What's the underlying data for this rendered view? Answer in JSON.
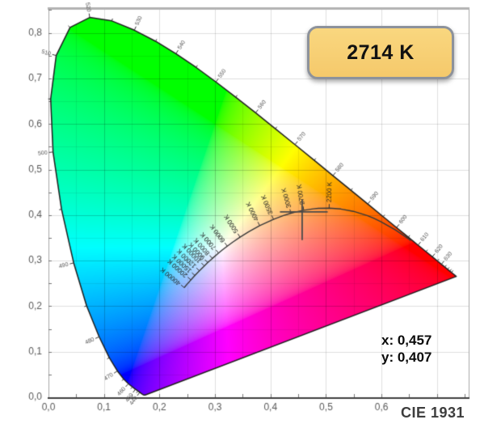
{
  "badge": {
    "label": "2714 K"
  },
  "readout": {
    "x": "x: 0,457",
    "y": "y: 0,407"
  },
  "footer": {
    "label": "CIE 1931"
  },
  "chart_data": {
    "type": "area",
    "subtype": "cie-1931-xy-chromaticity-diagram",
    "title": "CIE 1931",
    "xlabel": "x",
    "ylabel": "y",
    "xlim": [
      0,
      0.757
    ],
    "ylim": [
      0,
      0.8526
    ],
    "grid": {
      "major_step": 0.1,
      "minor_step": 0.05
    },
    "legend": "none",
    "x_ticks": {
      "values": [
        0,
        0.1,
        0.2,
        0.3,
        0.4,
        0.5,
        0.6
      ],
      "labels": [
        "0,0",
        "0,1",
        "0,2",
        "0,3",
        "0,4",
        "0,5",
        "0,6"
      ]
    },
    "y_ticks": {
      "values": [
        0,
        0.1,
        0.2,
        0.3,
        0.4,
        0.5,
        0.6,
        0.7,
        0.8
      ],
      "labels": [
        "0,0",
        "0,1",
        "0,2",
        "0,3",
        "0,4",
        "0,5",
        "0,6",
        "0,7",
        "0,8"
      ]
    },
    "spectral_locus": [
      [
        380,
        0.1741,
        0.005
      ],
      [
        385,
        0.174,
        0.005
      ],
      [
        390,
        0.1738,
        0.0049
      ],
      [
        395,
        0.1736,
        0.0049
      ],
      [
        400,
        0.1733,
        0.0048
      ],
      [
        405,
        0.173,
        0.0048
      ],
      [
        410,
        0.1726,
        0.0048
      ],
      [
        415,
        0.1721,
        0.0048
      ],
      [
        420,
        0.1714,
        0.0051
      ],
      [
        425,
        0.1703,
        0.0058
      ],
      [
        430,
        0.1689,
        0.0069
      ],
      [
        435,
        0.1669,
        0.0086
      ],
      [
        440,
        0.1644,
        0.0109
      ],
      [
        445,
        0.1611,
        0.0138
      ],
      [
        450,
        0.1566,
        0.0177
      ],
      [
        455,
        0.151,
        0.0227
      ],
      [
        460,
        0.144,
        0.0297
      ],
      [
        465,
        0.1355,
        0.0399
      ],
      [
        470,
        0.1241,
        0.0578
      ],
      [
        475,
        0.1096,
        0.0868
      ],
      [
        480,
        0.0913,
        0.1327
      ],
      [
        485,
        0.0687,
        0.2007
      ],
      [
        490,
        0.0454,
        0.295
      ],
      [
        495,
        0.0235,
        0.4127
      ],
      [
        500,
        0.0082,
        0.5384
      ],
      [
        505,
        0.0039,
        0.6548
      ],
      [
        510,
        0.0139,
        0.7502
      ],
      [
        515,
        0.0389,
        0.812
      ],
      [
        520,
        0.0743,
        0.8338
      ],
      [
        525,
        0.1142,
        0.8262
      ],
      [
        530,
        0.1547,
        0.8059
      ],
      [
        535,
        0.1929,
        0.7816
      ],
      [
        540,
        0.2296,
        0.7543
      ],
      [
        545,
        0.2658,
        0.7243
      ],
      [
        550,
        0.3016,
        0.6923
      ],
      [
        555,
        0.3373,
        0.6589
      ],
      [
        560,
        0.3731,
        0.6245
      ],
      [
        565,
        0.4087,
        0.5896
      ],
      [
        570,
        0.4441,
        0.5547
      ],
      [
        575,
        0.4788,
        0.5202
      ],
      [
        580,
        0.5125,
        0.4866
      ],
      [
        585,
        0.5448,
        0.4544
      ],
      [
        590,
        0.5752,
        0.4242
      ],
      [
        595,
        0.6029,
        0.3965
      ],
      [
        600,
        0.627,
        0.3725
      ],
      [
        605,
        0.6482,
        0.3514
      ],
      [
        610,
        0.6658,
        0.334
      ],
      [
        615,
        0.6801,
        0.3197
      ],
      [
        620,
        0.6915,
        0.3083
      ],
      [
        625,
        0.7006,
        0.2993
      ],
      [
        630,
        0.7079,
        0.292
      ],
      [
        635,
        0.714,
        0.2859
      ],
      [
        640,
        0.719,
        0.2809
      ],
      [
        645,
        0.723,
        0.277
      ],
      [
        650,
        0.726,
        0.274
      ],
      [
        655,
        0.7283,
        0.2717
      ],
      [
        660,
        0.73,
        0.27
      ],
      [
        665,
        0.7311,
        0.2689
      ],
      [
        670,
        0.732,
        0.268
      ],
      [
        675,
        0.7327,
        0.2673
      ],
      [
        680,
        0.7334,
        0.2666
      ],
      [
        685,
        0.734,
        0.266
      ],
      [
        690,
        0.7344,
        0.2656
      ],
      [
        695,
        0.7346,
        0.2654
      ],
      [
        700,
        0.7347,
        0.2653
      ]
    ],
    "wavelength_ticks": {
      "from": 440,
      "to": 650,
      "step": 5
    },
    "wavelength_labels": [
      440,
      450,
      460,
      470,
      480,
      490,
      500,
      510,
      520,
      530,
      540,
      550,
      560,
      570,
      580,
      590,
      600,
      610,
      620,
      630
    ],
    "planckian_locus": [
      [
        40000,
        0.2445,
        0.2407
      ],
      [
        30000,
        0.2501,
        0.2489
      ],
      [
        25000,
        0.2538,
        0.2537
      ],
      [
        20000,
        0.2565,
        0.2577
      ],
      [
        15000,
        0.2637,
        0.2673
      ],
      [
        12000,
        0.2718,
        0.2776
      ],
      [
        10000,
        0.2807,
        0.2884
      ],
      [
        9000,
        0.2869,
        0.2956
      ],
      [
        8000,
        0.2952,
        0.3048
      ],
      [
        7000,
        0.3064,
        0.3166
      ],
      [
        6500,
        0.3135,
        0.3237
      ],
      [
        6000,
        0.3221,
        0.3318
      ],
      [
        5500,
        0.3325,
        0.3411
      ],
      [
        5000,
        0.3451,
        0.3516
      ],
      [
        4500,
        0.3608,
        0.3636
      ],
      [
        4000,
        0.3805,
        0.3768
      ],
      [
        3500,
        0.4053,
        0.3907
      ],
      [
        3200,
        0.4234,
        0.399
      ],
      [
        3000,
        0.4369,
        0.4041
      ],
      [
        2856,
        0.4476,
        0.4074
      ],
      [
        2700,
        0.4599,
        0.4106
      ],
      [
        2500,
        0.477,
        0.4137
      ],
      [
        2400,
        0.4862,
        0.4147
      ],
      [
        2200,
        0.5056,
        0.4152
      ],
      [
        2000,
        0.5267,
        0.4133
      ],
      [
        1800,
        0.5493,
        0.4082
      ],
      [
        1600,
        0.574,
        0.3991
      ],
      [
        1500,
        0.5857,
        0.3931
      ],
      [
        1400,
        0.5984,
        0.3858
      ],
      [
        1200,
        0.6249,
        0.3676
      ],
      [
        1000,
        0.6528,
        0.3444
      ]
    ],
    "temperature_marks": [
      {
        "t": 40000,
        "label": "40000 K"
      },
      {
        "t": 20000,
        "label": "20000 K"
      },
      {
        "t": 15000,
        "label": "15000 K"
      },
      {
        "t": 12000,
        "label": "12000 K"
      },
      {
        "t": 10000,
        "label": "10000 K"
      },
      {
        "t": 9000,
        "label": "9000 K"
      },
      {
        "t": 8000,
        "label": "8000 K"
      },
      {
        "t": 7000,
        "label": "7000 K"
      },
      {
        "t": 6000,
        "label": "6000 K"
      },
      {
        "t": 5000,
        "label": "5000 K"
      },
      {
        "t": 4000,
        "label": "4000 K"
      },
      {
        "t": 3500,
        "label": "3500 K"
      },
      {
        "t": 3000,
        "label": "3000 K"
      },
      {
        "t": 2700,
        "label": "2700 K"
      },
      {
        "t": 2200,
        "label": "2200 K"
      }
    ],
    "marker": {
      "x": 0.457,
      "y": 0.407,
      "cct": 2714,
      "label": "2714 K",
      "h_arm": [
        -0.04,
        0.046
      ],
      "v_arm": [
        -0.062,
        0.027
      ]
    },
    "colors": {
      "background": "#ffffff",
      "grid_major": "rgba(0,0,0,0.12)",
      "grid_minor": "rgba(0,0,0,0.07)",
      "frame_top": "#b3b3b3",
      "frame_side": "#a8a8a8",
      "axis_bottom": "#3f3f3f",
      "tick": "#777777",
      "tick_label": "#5a5a5a",
      "locus_outline": "#1f1f1f",
      "wl_tick": "#333333",
      "wl_label": "#555555",
      "planck": "#383838",
      "temp_label": "#222222",
      "crosshair": "#4a4a4a",
      "badge_fill": "#f7cf74",
      "badge_border": "#8d929b"
    }
  }
}
